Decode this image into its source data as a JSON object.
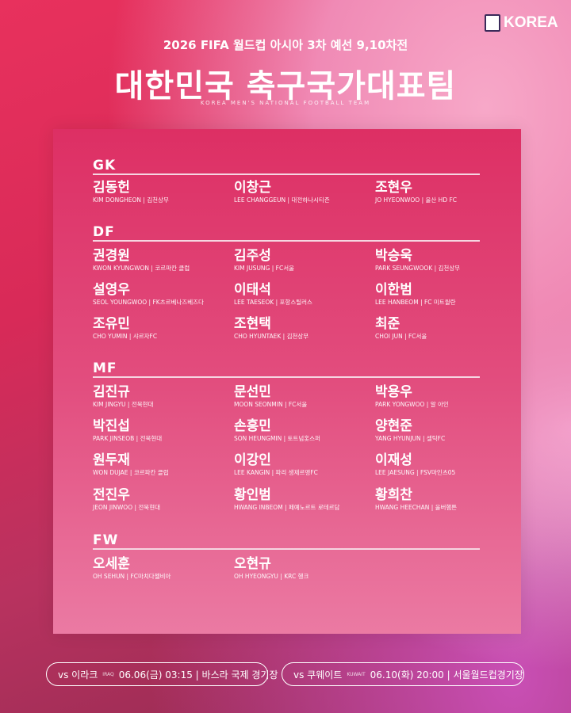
{
  "logo": {
    "text": "KOREA",
    "icon": "kfa-tiger-shield-icon"
  },
  "header": {
    "subtitle": "2026 FIFA 월드컵 아시아 3차 예선 9,10차전",
    "title": "대한민국 축구국가대표팀",
    "english": "KOREA MEN'S NATIONAL FOOTBALL TEAM"
  },
  "sections": [
    {
      "label": "GK",
      "players": [
        {
          "name": "김동헌",
          "info": "KIM DONGHEON | 김천상무"
        },
        {
          "name": "이창근",
          "info": "LEE CHANGGEUN | 대전하나시티즌"
        },
        {
          "name": "조현우",
          "info": "JO HYEONWOO | 울산 HD FC"
        }
      ]
    },
    {
      "label": "DF",
      "players": [
        {
          "name": "권경원",
          "info": "KWON KYUNGWON | 코르파칸 클럽"
        },
        {
          "name": "김주성",
          "info": "KIM JUSUNG | FC서울"
        },
        {
          "name": "박승욱",
          "info": "PARK SEUNGWOOK | 김천상무"
        },
        {
          "name": "설영우",
          "info": "SEOL YOUNGWOO | FK츠르베나즈베즈다"
        },
        {
          "name": "이태석",
          "info": "LEE TAESEOK | 포항스틸러스"
        },
        {
          "name": "이한범",
          "info": "LEE HANBEOM | FC 미트윌란"
        },
        {
          "name": "조유민",
          "info": "CHO YUMIN | 샤르자FC"
        },
        {
          "name": "조현택",
          "info": "CHO HYUNTAEK | 김천상무"
        },
        {
          "name": "최준",
          "info": "CHOI JUN | FC서울"
        }
      ]
    },
    {
      "label": "MF",
      "players": [
        {
          "name": "김진규",
          "info": "KIM JINGYU | 전북현대"
        },
        {
          "name": "문선민",
          "info": "MOON SEONMIN | FC서울"
        },
        {
          "name": "박용우",
          "info": "PARK YONGWOO | 알 아인"
        },
        {
          "name": "박진섭",
          "info": "PARK JINSEOB | 전북현대"
        },
        {
          "name": "손흥민",
          "info": "SON HEUNGMIN | 토트넘홋스퍼"
        },
        {
          "name": "양현준",
          "info": "YANG HYUNJUN | 셀틱FC"
        },
        {
          "name": "원두재",
          "info": "WON DUJAE | 코르파칸 클럽"
        },
        {
          "name": "이강인",
          "info": "LEE KANGIN | 파리 생제르맹FC"
        },
        {
          "name": "이재성",
          "info": "LEE JAESUNG | FSV마인츠05"
        },
        {
          "name": "전진우",
          "info": "JEON JINWOO | 전북현대"
        },
        {
          "name": "황인범",
          "info": "HWANG INBEOM | 페예노르트 로테르담"
        },
        {
          "name": "황희찬",
          "info": "HWANG HEECHAN | 울버햄튼"
        }
      ]
    },
    {
      "label": "FW",
      "players": [
        {
          "name": "오세훈",
          "info": "OH SEHUN | FC마치다젤비아"
        },
        {
          "name": "오현규",
          "info": "OH HYEONGYU | KRC 헹크"
        }
      ]
    }
  ],
  "matches": [
    {
      "vs": "vs 이라크",
      "en": "IRAQ",
      "detail": "06.06(금) 03:15 | 바스라 국제 경기장"
    },
    {
      "vs": "vs 쿠웨이트",
      "en": "KUWAIT",
      "detail": "06.10(화) 20:00 | 서울월드컵경기장"
    }
  ]
}
